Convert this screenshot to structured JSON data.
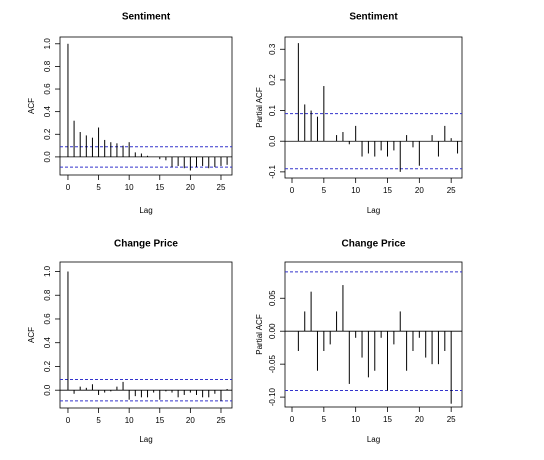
{
  "chart_data": [
    {
      "type": "acf",
      "title": "Sentiment",
      "x_label": "Lag",
      "y_label": "ACF",
      "x": [
        0,
        1,
        2,
        3,
        4,
        5,
        6,
        7,
        8,
        9,
        10,
        11,
        12,
        13,
        14,
        15,
        16,
        17,
        18,
        19,
        20,
        21,
        22,
        23,
        24,
        25,
        26
      ],
      "values": [
        1.0,
        0.32,
        0.22,
        0.19,
        0.17,
        0.26,
        0.15,
        0.13,
        0.12,
        0.1,
        0.13,
        0.04,
        0.03,
        0.01,
        0.0,
        -0.02,
        -0.03,
        -0.09,
        -0.08,
        -0.1,
        -0.12,
        -0.09,
        -0.08,
        -0.1,
        -0.09,
        -0.08,
        -0.07
      ],
      "color": "#000000",
      "confidence_limit": 0.09,
      "confidence_color": "#3333cc",
      "xlim": [
        -1.3,
        26.8
      ],
      "xticks": [
        0,
        5,
        10,
        15,
        20,
        25
      ],
      "ylim": [
        -0.16,
        1.06
      ],
      "yticks": [
        {
          "value": 0,
          "label": "0.0"
        },
        0.2,
        0.4,
        0.6,
        0.8,
        {
          "value": 1,
          "label": "1.0"
        }
      ]
    },
    {
      "type": "acf",
      "title": "Sentiment",
      "x_label": "Lag",
      "y_label": "Partial ACF",
      "x": [
        1,
        2,
        3,
        4,
        5,
        6,
        7,
        8,
        9,
        10,
        11,
        12,
        13,
        14,
        15,
        16,
        17,
        18,
        19,
        20,
        21,
        22,
        23,
        24,
        25,
        26
      ],
      "values": [
        0.32,
        0.12,
        0.1,
        0.08,
        0.18,
        0.0,
        0.02,
        0.03,
        -0.01,
        0.05,
        -0.05,
        -0.04,
        -0.05,
        -0.03,
        -0.05,
        -0.03,
        -0.1,
        0.02,
        -0.02,
        -0.08,
        0.0,
        0.02,
        -0.05,
        0.05,
        0.01,
        -0.04
      ],
      "color": "#000000",
      "confidence_limit": 0.09,
      "confidence_color": "#3333cc",
      "xlim": [
        -1.1,
        26.7
      ],
      "xticks": [
        0,
        5,
        10,
        15,
        20,
        25
      ],
      "ylim": [
        -0.12,
        0.34
      ],
      "yticks": [
        -0.1,
        {
          "value": 0,
          "label": "0.0"
        },
        0.1,
        0.2,
        0.3
      ]
    },
    {
      "type": "acf",
      "title": "Change Price",
      "x_label": "Lag",
      "y_label": "ACF",
      "x": [
        0,
        1,
        2,
        3,
        4,
        5,
        6,
        7,
        8,
        9,
        10,
        11,
        12,
        13,
        14,
        15,
        16,
        17,
        18,
        19,
        20,
        21,
        22,
        23,
        24,
        25,
        26
      ],
      "values": [
        1.0,
        -0.03,
        0.03,
        0.02,
        0.05,
        -0.04,
        -0.02,
        -0.01,
        0.03,
        0.07,
        -0.08,
        -0.05,
        -0.06,
        -0.06,
        -0.02,
        -0.08,
        -0.01,
        -0.02,
        -0.06,
        -0.04,
        -0.02,
        -0.04,
        -0.06,
        -0.06,
        -0.03,
        -0.09,
        0.01
      ],
      "color": "#000000",
      "confidence_limit": 0.09,
      "confidence_color": "#3333cc",
      "xlim": [
        -1.3,
        26.8
      ],
      "xticks": [
        0,
        5,
        10,
        15,
        20,
        25
      ],
      "ylim": [
        -0.15,
        1.08
      ],
      "yticks": [
        {
          "value": 0,
          "label": "0.0"
        },
        0.2,
        0.4,
        0.6,
        0.8,
        {
          "value": 1,
          "label": "1.0"
        }
      ]
    },
    {
      "type": "acf",
      "title": "Change Price",
      "x_label": "Lag",
      "y_label": "Partial ACF",
      "x": [
        1,
        2,
        3,
        4,
        5,
        6,
        7,
        8,
        9,
        10,
        11,
        12,
        13,
        14,
        15,
        16,
        17,
        18,
        19,
        20,
        21,
        22,
        23,
        24,
        25,
        26
      ],
      "values": [
        -0.03,
        0.03,
        0.06,
        -0.06,
        -0.03,
        -0.02,
        0.03,
        0.07,
        -0.08,
        -0.01,
        -0.04,
        -0.07,
        -0.06,
        -0.01,
        -0.09,
        -0.02,
        0.03,
        -0.06,
        -0.03,
        -0.01,
        -0.04,
        -0.05,
        -0.05,
        -0.03,
        -0.11,
        0.0
      ],
      "color": "#000000",
      "confidence_limit": 0.09,
      "confidence_color": "#3333cc",
      "xlim": [
        -1.1,
        26.7
      ],
      "xticks": [
        0,
        5,
        10,
        15,
        20,
        25
      ],
      "ylim": [
        -0.115,
        0.105
      ],
      "yticks": [
        {
          "value": -0.1,
          "label": "-0.10"
        },
        {
          "value": -0.05,
          "label": "-0.05"
        },
        {
          "value": 0,
          "label": "0.00"
        },
        0.05
      ]
    }
  ]
}
